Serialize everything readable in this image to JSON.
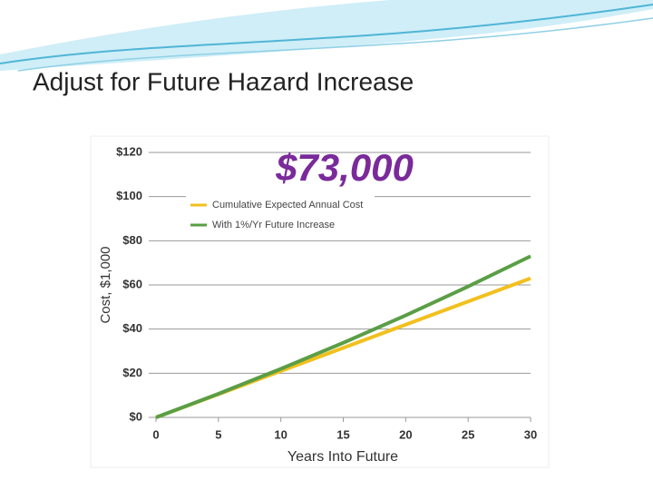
{
  "slide_title": "Adjust for Future Hazard Increase",
  "chart_data": {
    "type": "line",
    "annotation": "$73,000",
    "xlabel": "Years Into Future",
    "ylabel": "Cost, $1,000",
    "x": [
      0,
      5,
      10,
      15,
      20,
      25,
      30
    ],
    "series": [
      {
        "name": "Cumulative Expected Annual  Cost",
        "color": "#f2c01e",
        "values": [
          0,
          10.5,
          21,
          31.5,
          42,
          52.5,
          63
        ]
      },
      {
        "name": "With 1%/Yr Future Increase",
        "color": "#5a9e45",
        "values": [
          0,
          10.7,
          22,
          33.8,
          46.2,
          59.3,
          73
        ]
      }
    ],
    "xlim": [
      0,
      30
    ],
    "xticks": [
      0,
      5,
      10,
      15,
      20,
      25,
      30
    ],
    "ylim": [
      0,
      120
    ],
    "yticks": [
      {
        "value": 0,
        "label": "$0"
      },
      {
        "value": 20,
        "label": "$20"
      },
      {
        "value": 40,
        "label": "$40"
      },
      {
        "value": 60,
        "label": "$60"
      },
      {
        "value": 80,
        "label": "$80"
      },
      {
        "value": 100,
        "label": "$100"
      },
      {
        "value": 120,
        "label": "$120"
      }
    ],
    "grid": true,
    "legend": "upper left"
  }
}
